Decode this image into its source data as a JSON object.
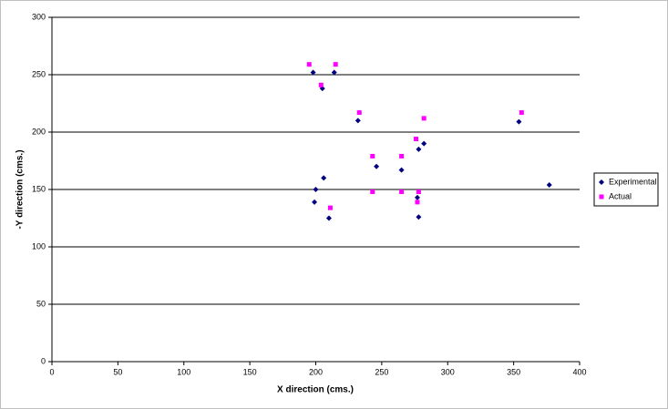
{
  "chart_data": {
    "type": "scatter",
    "x_label": "X direction (cms.)",
    "y_label": "-Y direction (cms.)",
    "xlim": [
      0,
      400
    ],
    "xticks": [
      0,
      50,
      100,
      150,
      200,
      250,
      300,
      350,
      400
    ],
    "ylim": [
      0,
      300
    ],
    "yticks": [
      0,
      50,
      100,
      150,
      200,
      250,
      300
    ],
    "grid": true,
    "legend": "right",
    "series": [
      {
        "name": "Experimental",
        "color": "#000080",
        "marker": "diamond",
        "x": [
          198,
          205,
          214,
          232,
          354,
          278,
          282,
          246,
          265,
          206,
          200,
          199,
          210,
          277,
          278,
          377
        ],
        "values": [
          252,
          238,
          252,
          210,
          209,
          185,
          190,
          170,
          167,
          160,
          150,
          139,
          125,
          143,
          126,
          154
        ]
      },
      {
        "name": "Actual",
        "color": "#ff00ff",
        "marker": "square",
        "x": [
          195,
          215,
          204,
          233,
          356,
          282,
          276,
          243,
          265,
          243,
          265,
          278,
          277,
          211
        ],
        "values": [
          259,
          259,
          241,
          217,
          217,
          212,
          194,
          179,
          179,
          148,
          148,
          148,
          139,
          134
        ]
      }
    ]
  }
}
